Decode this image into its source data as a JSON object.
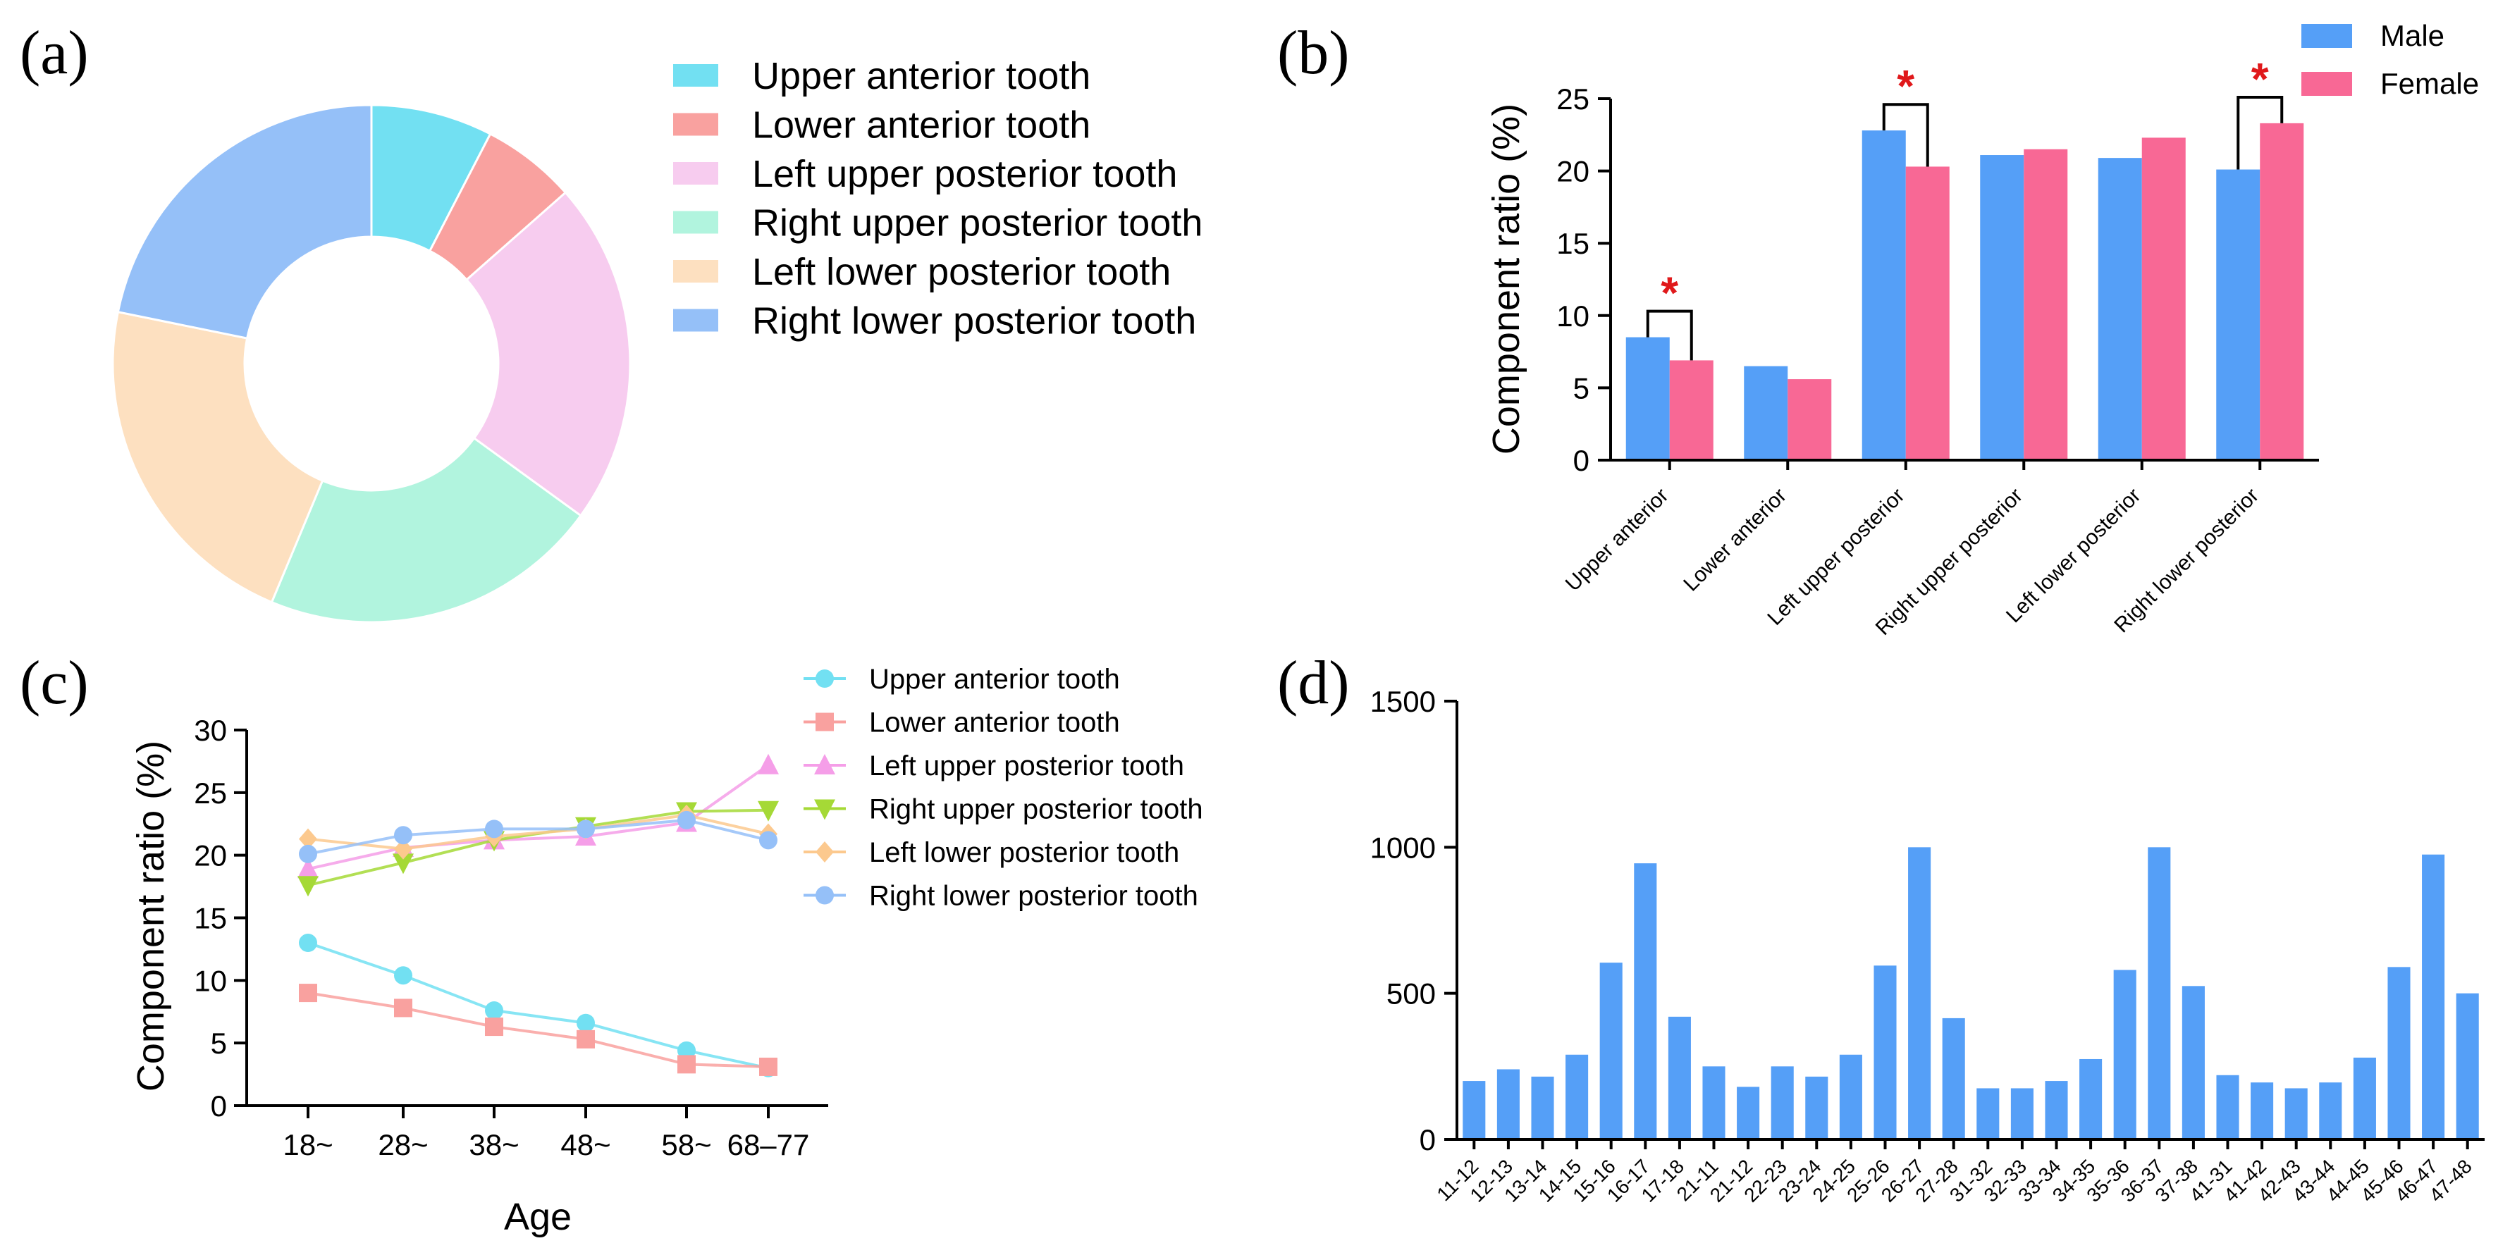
{
  "panels": {
    "a": "(a)",
    "b": "(b)",
    "c": "(c)",
    "d": "(d)"
  },
  "chart_data": [
    {
      "id": "a",
      "type": "pie",
      "donut": true,
      "labels": [
        "Upper anterior tooth",
        "Lower anterior tooth",
        "Left upper posterior tooth",
        "Right upper posterior tooth",
        "Left lower posterior tooth",
        "Right lower posterior tooth"
      ],
      "values": [
        7.6,
        5.9,
        21.5,
        21.3,
        21.9,
        21.8
      ],
      "colors": [
        "#72e0f2",
        "#f9a19f",
        "#f7ccef",
        "#b1f4de",
        "#fde0c0",
        "#95c0f8"
      ],
      "legend_position": "right"
    },
    {
      "id": "b",
      "type": "bar",
      "categories": [
        "Upper anterior",
        "Lower anterior",
        "Left upper posterior",
        "Right upper posterior",
        "Left lower posterior",
        "Right lower posterior"
      ],
      "series": [
        {
          "name": "Male",
          "values": [
            8.5,
            6.5,
            22.8,
            21.1,
            20.9,
            20.1
          ],
          "color": "#559ff7"
        },
        {
          "name": "Female",
          "values": [
            6.9,
            5.6,
            20.3,
            21.5,
            22.3,
            23.3
          ],
          "color": "#f86895"
        }
      ],
      "significance": [
        true,
        false,
        true,
        false,
        false,
        true
      ],
      "significance_marker": "*",
      "ylabel": "Component ratio (%)",
      "ylim": [
        0,
        25
      ],
      "yticks": [
        0,
        5,
        10,
        15,
        20,
        25
      ],
      "legend_position": "top-right"
    },
    {
      "id": "c",
      "type": "line",
      "categories": [
        "18~",
        "28~",
        "38~",
        "48~",
        "58~",
        "68–77"
      ],
      "series": [
        {
          "name": "Upper anterior tooth",
          "values": [
            13.0,
            10.4,
            7.6,
            6.6,
            4.4,
            3.0
          ],
          "color": "#72e0f2",
          "marker": "circle"
        },
        {
          "name": "Lower anterior tooth",
          "values": [
            9.0,
            7.8,
            6.3,
            5.3,
            3.3,
            3.1
          ],
          "color": "#f9a19f",
          "marker": "square"
        },
        {
          "name": "Left upper posterior tooth",
          "values": [
            18.9,
            20.6,
            21.2,
            21.5,
            22.6,
            27.2
          ],
          "color": "#f59ee8",
          "marker": "triangle-up"
        },
        {
          "name": "Right upper posterior tooth",
          "values": [
            17.6,
            19.4,
            21.2,
            22.3,
            23.5,
            23.6
          ],
          "color": "#a5d936",
          "marker": "triangle-down"
        },
        {
          "name": "Left lower posterior tooth",
          "values": [
            21.3,
            20.5,
            21.5,
            22.1,
            23.2,
            21.7
          ],
          "color": "#fcc98e",
          "marker": "diamond"
        },
        {
          "name": "Right lower posterior tooth",
          "values": [
            20.1,
            21.6,
            22.1,
            22.1,
            22.8,
            21.2
          ],
          "color": "#95c0f8",
          "marker": "circle"
        }
      ],
      "xlabel": "Age",
      "ylabel": "Component ratio (%)",
      "ylim": [
        0,
        30
      ],
      "yticks": [
        0,
        5,
        10,
        15,
        20,
        25,
        30
      ],
      "legend_position": "top-right"
    },
    {
      "id": "d",
      "type": "bar",
      "categories": [
        "11-12",
        "12-13",
        "13-14",
        "14-15",
        "15-16",
        "16-17",
        "17-18",
        "21-11",
        "21-12",
        "22-23",
        "23-24",
        "24-25",
        "25-26",
        "26-27",
        "27-28",
        "31-32",
        "32-33",
        "33-34",
        "34-35",
        "35-36",
        "36-37",
        "37-38",
        "41-31",
        "41-42",
        "42-43",
        "43-44",
        "44-45",
        "45-46",
        "46-47",
        "47-48"
      ],
      "values": [
        200,
        240,
        215,
        290,
        605,
        945,
        420,
        250,
        180,
        250,
        215,
        290,
        595,
        1000,
        415,
        175,
        175,
        200,
        275,
        580,
        1000,
        525,
        220,
        195,
        175,
        195,
        280,
        590,
        975,
        500
      ],
      "color": "#559ff7",
      "ylim": [
        0,
        1500
      ],
      "yticks": [
        0,
        500,
        1000,
        1500
      ]
    }
  ]
}
